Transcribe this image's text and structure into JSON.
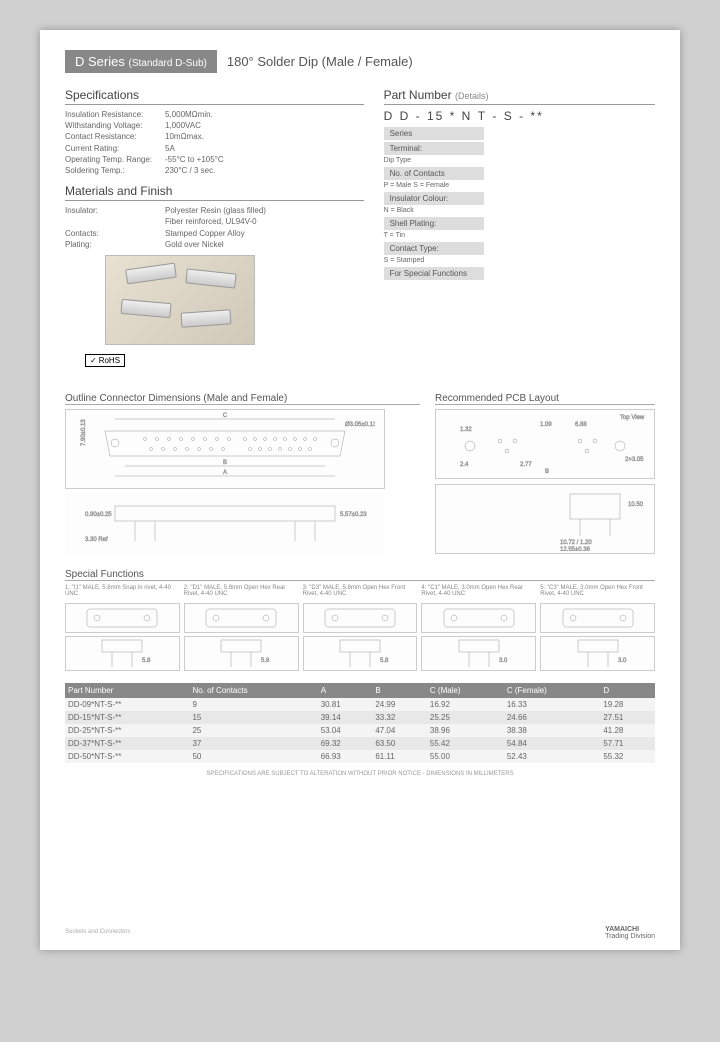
{
  "header": {
    "series": "D Series",
    "standard": "(Standard D-Sub)",
    "subtitle": "180° Solder Dip (Male / Female)"
  },
  "specifications": {
    "title": "Specifications",
    "rows": [
      {
        "label": "Insulation Resistance:",
        "value": "5,000MΩmin."
      },
      {
        "label": "Withstanding Voltage:",
        "value": "1,000VAC"
      },
      {
        "label": "Contact Resistance:",
        "value": "10mΩmax."
      },
      {
        "label": "Current Rating:",
        "value": "5A"
      },
      {
        "label": "Operating Temp. Range:",
        "value": "-55°C to +105°C"
      },
      {
        "label": "Soldering Temp.:",
        "value": "230°C / 3 sec."
      }
    ]
  },
  "materials": {
    "title": "Materials and Finish",
    "rows": [
      {
        "label": "Insulator:",
        "value": "Polyester Resin (glass filled)"
      },
      {
        "label": "",
        "value": "Fiber reinforced, UL94V-0"
      },
      {
        "label": "Contacts:",
        "value": "Stamped Copper Alloy"
      },
      {
        "label": "Plating:",
        "value": "Gold over Nickel"
      }
    ],
    "rohs": "RoHS"
  },
  "part_number": {
    "title": "Part Number",
    "detail": "(Details)",
    "code": [
      "D",
      "D",
      "-",
      "15",
      "*",
      "N",
      "T",
      "-",
      "S",
      "-",
      "**"
    ],
    "labels": [
      {
        "box": "Series",
        "sub": ""
      },
      {
        "box": "Terminal:",
        "sub": "Dip Type"
      },
      {
        "box": "No. of Contacts",
        "sub": ""
      },
      {
        "box": "",
        "sub": "P = Male   S = Female"
      },
      {
        "box": "Insulator Colour:",
        "sub": "N = Black"
      },
      {
        "box": "Shell Plating:",
        "sub": "T = Tin"
      },
      {
        "box": "Contact Type:",
        "sub": "S = Stamped"
      },
      {
        "box": "For Special Functions",
        "sub": ""
      }
    ]
  },
  "outline": {
    "title": "Outline Connector Dimensions (Male and Female)",
    "pcb_title": "Recommended PCB Layout",
    "dims": {
      "front": [
        "C",
        "B",
        "A",
        "7.90±0.13",
        "Ø3.05±0.13"
      ],
      "side": [
        "0.90±0.25",
        "3.30 Ref",
        "5.57±0.23"
      ],
      "pcb_top": [
        "1.32",
        "2.4",
        "1.09",
        "2.77",
        "6.88",
        "B",
        "2×3.05",
        "Top View"
      ],
      "pcb_side": [
        "10.50",
        "10.72 / 1.20",
        "12.55±0.36"
      ]
    }
  },
  "special_functions": {
    "title": "Special Functions",
    "items": [
      {
        "id": "1",
        "desc": "\"I1\" MALE, 5.8mm Snap in rivet, 4-40 UNC"
      },
      {
        "id": "2",
        "desc": "\"D1\" MALE, 5.8mm Open Hex Rear Rivet, 4-40 UNC"
      },
      {
        "id": "3",
        "desc": "\"D3\" MALE, 5.8mm Open Hex Front Rivet, 4-40 UNC"
      },
      {
        "id": "4",
        "desc": "\"C1\" MALE, 3.0mm Open Hex Rear Rivet, 4-40 UNC"
      },
      {
        "id": "5",
        "desc": "\"C3\" MALE, 3.0mm Open Hex Front Rivet, 4-40 UNC"
      }
    ],
    "pin_dims": [
      "5.8",
      "5.8",
      "5.8",
      "3.0",
      "3.0"
    ]
  },
  "table": {
    "columns": [
      "Part Number",
      "No. of Contacts",
      "A",
      "B",
      "C (Male)",
      "C (Female)",
      "D"
    ],
    "rows": [
      [
        "DD-09*NT-S-**",
        "9",
        "30.81",
        "24.99",
        "16.92",
        "16.33",
        "19.28"
      ],
      [
        "DD-15*NT-S-**",
        "15",
        "39.14",
        "33.32",
        "25.25",
        "24.66",
        "27.51"
      ],
      [
        "DD-25*NT-S-**",
        "25",
        "53.04",
        "47.04",
        "38.96",
        "38.38",
        "41.28"
      ],
      [
        "DD-37*NT-S-**",
        "37",
        "69.32",
        "63.50",
        "55.42",
        "54.84",
        "57.71"
      ],
      [
        "DD-50*NT-S-**",
        "50",
        "66.93",
        "61.11",
        "55.00",
        "52.43",
        "55.32"
      ]
    ]
  },
  "footer": {
    "disclaimer": "SPECIFICATIONS ARE SUBJECT TO ALTERATION WITHOUT PRIOR NOTICE - DIMENSIONS IN MILLIMETERS",
    "sockets": "Sockets and Connectors",
    "brand": "YAMAICHI",
    "division": "Trading Division"
  },
  "colors": {
    "header_bg": "#888888",
    "row_alt1": "#e8e8e8",
    "row_alt2": "#f4f4f4",
    "label_bg": "#dddddd"
  }
}
